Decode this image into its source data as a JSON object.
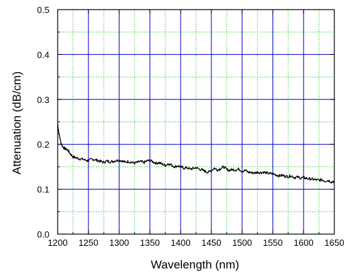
{
  "chart_data": {
    "type": "line",
    "title": "",
    "xlabel": "Wavelength (nm)",
    "ylabel": "Attenuation (dB/cm)",
    "xlim": [
      1200,
      1650
    ],
    "ylim": [
      0.0,
      0.5
    ],
    "x_ticks": [
      "1200",
      "1250",
      "1300",
      "1350",
      "1400",
      "1450",
      "1500",
      "1550",
      "1600",
      "1650"
    ],
    "y_ticks": [
      "0.0",
      "0.1",
      "0.2",
      "0.3",
      "0.4",
      "0.5"
    ],
    "grid": true,
    "colors": {
      "line": "#000000",
      "major_grid": "#0000cc",
      "minor_grid": "#33cc33"
    },
    "series": [
      {
        "x": [
          1200,
          1202,
          1205,
          1208,
          1212,
          1216,
          1220,
          1225,
          1230,
          1235,
          1240,
          1245,
          1250,
          1255,
          1260,
          1265,
          1270,
          1275,
          1280,
          1285,
          1290,
          1295,
          1300,
          1305,
          1310,
          1315,
          1320,
          1325,
          1330,
          1335,
          1340,
          1345,
          1350,
          1355,
          1360,
          1365,
          1370,
          1375,
          1380,
          1385,
          1390,
          1395,
          1400,
          1405,
          1410,
          1415,
          1420,
          1425,
          1430,
          1435,
          1440,
          1445,
          1450,
          1455,
          1460,
          1465,
          1470,
          1475,
          1480,
          1485,
          1490,
          1495,
          1500,
          1505,
          1510,
          1515,
          1520,
          1525,
          1530,
          1535,
          1540,
          1545,
          1550,
          1555,
          1560,
          1565,
          1570,
          1575,
          1580,
          1585,
          1590,
          1595,
          1600,
          1605,
          1610,
          1615,
          1620,
          1625,
          1630,
          1635,
          1640,
          1645,
          1650
        ],
        "y": [
          0.245,
          0.225,
          0.205,
          0.195,
          0.19,
          0.188,
          0.18,
          0.172,
          0.17,
          0.168,
          0.167,
          0.165,
          0.163,
          0.167,
          0.166,
          0.164,
          0.162,
          0.16,
          0.163,
          0.161,
          0.162,
          0.164,
          0.165,
          0.163,
          0.16,
          0.162,
          0.16,
          0.158,
          0.16,
          0.162,
          0.159,
          0.163,
          0.164,
          0.161,
          0.158,
          0.159,
          0.156,
          0.153,
          0.157,
          0.154,
          0.15,
          0.152,
          0.15,
          0.147,
          0.148,
          0.145,
          0.146,
          0.148,
          0.145,
          0.143,
          0.14,
          0.138,
          0.142,
          0.147,
          0.143,
          0.146,
          0.15,
          0.144,
          0.142,
          0.144,
          0.143,
          0.145,
          0.14,
          0.142,
          0.138,
          0.137,
          0.136,
          0.138,
          0.137,
          0.138,
          0.136,
          0.135,
          0.134,
          0.132,
          0.13,
          0.131,
          0.129,
          0.128,
          0.13,
          0.126,
          0.127,
          0.125,
          0.126,
          0.124,
          0.123,
          0.122,
          0.121,
          0.12,
          0.121,
          0.118,
          0.12,
          0.116,
          0.118
        ]
      }
    ]
  }
}
